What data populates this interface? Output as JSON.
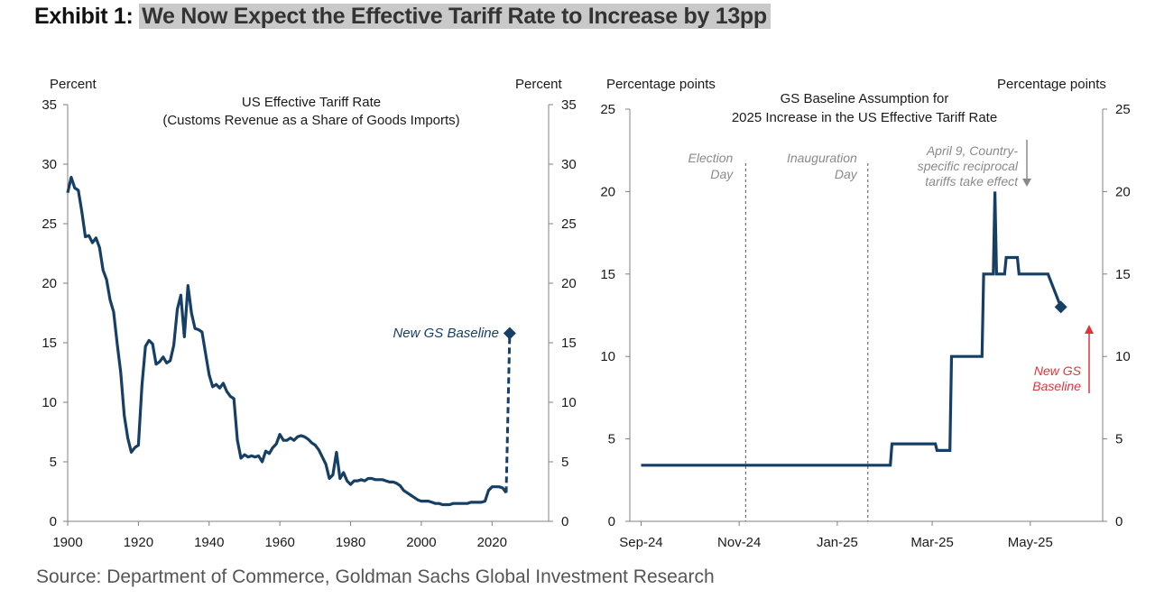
{
  "header": {
    "exhibit_label": "Exhibit 1:",
    "title": "We Now Expect the Effective Tariff Rate to Increase by 13pp"
  },
  "footer": {
    "source": "Source: Department of Commerce, Goldman Sachs Global Investment Research"
  },
  "colors": {
    "series": "#163f66",
    "annotation_gray": "#8a8a8a",
    "annotation_red": "#e0343b",
    "axis": "#808080"
  },
  "chart_data": [
    {
      "type": "line",
      "title_lines": [
        "US Effective Tariff Rate",
        "(Customs Revenue  as a Share of Goods Imports)"
      ],
      "ylabel_left": "Percent",
      "ylabel_right": "Percent",
      "xlim": [
        1900,
        2036
      ],
      "ylim": [
        0,
        35
      ],
      "x_ticks": [
        "1900",
        "1920",
        "1940",
        "1960",
        "1980",
        "2000",
        "2020"
      ],
      "x_tick_values": [
        1900,
        1920,
        1940,
        1960,
        1980,
        2000,
        2020
      ],
      "y_ticks": [
        "0",
        "5",
        "10",
        "15",
        "20",
        "25",
        "30",
        "35"
      ],
      "y_tick_values": [
        0,
        5,
        10,
        15,
        20,
        25,
        30,
        35
      ],
      "series": [
        {
          "x": [
            1900,
            1901,
            1902,
            1903,
            1904,
            1905,
            1906,
            1907,
            1908,
            1909,
            1910,
            1911,
            1912,
            1913,
            1914,
            1915,
            1916,
            1917,
            1918,
            1919,
            1920,
            1921,
            1922,
            1923,
            1924,
            1925,
            1926,
            1927,
            1928,
            1929,
            1930,
            1931,
            1932,
            1933,
            1934,
            1935,
            1936,
            1937,
            1938,
            1939,
            1940,
            1941,
            1942,
            1943,
            1944,
            1945,
            1946,
            1947,
            1948,
            1949,
            1950,
            1951,
            1952,
            1953,
            1954,
            1955,
            1956,
            1957,
            1958,
            1959,
            1960,
            1961,
            1962,
            1963,
            1964,
            1965,
            1966,
            1967,
            1968,
            1969,
            1970,
            1971,
            1972,
            1973,
            1974,
            1975,
            1976,
            1977,
            1978,
            1979,
            1980,
            1981,
            1982,
            1983,
            1984,
            1985,
            1986,
            1987,
            1988,
            1989,
            1990,
            1991,
            1992,
            1993,
            1994,
            1995,
            1996,
            1997,
            1998,
            1999,
            2000,
            2001,
            2002,
            2003,
            2004,
            2005,
            2006,
            2007,
            2008,
            2009,
            2010,
            2011,
            2012,
            2013,
            2014,
            2015,
            2016,
            2017,
            2018,
            2019,
            2020,
            2021,
            2022,
            2023,
            2024
          ],
          "values": [
            27.6,
            28.9,
            28.0,
            27.8,
            26.0,
            23.9,
            24.0,
            23.4,
            23.8,
            23.0,
            21.1,
            20.3,
            18.6,
            17.6,
            14.9,
            12.5,
            8.9,
            7.0,
            5.8,
            6.2,
            6.4,
            11.4,
            14.7,
            15.2,
            14.9,
            13.2,
            13.4,
            13.8,
            13.3,
            13.5,
            14.8,
            17.8,
            19.0,
            15.5,
            19.8,
            17.5,
            16.2,
            16.1,
            15.9,
            14.1,
            12.3,
            11.3,
            11.5,
            11.2,
            11.6,
            10.9,
            10.5,
            10.3,
            6.8,
            5.3,
            5.6,
            5.4,
            5.5,
            5.4,
            5.5,
            5.0,
            5.9,
            5.7,
            6.2,
            6.5,
            7.3,
            6.8,
            6.8,
            7.0,
            6.8,
            7.1,
            7.2,
            7.1,
            6.9,
            6.6,
            6.4,
            6.0,
            5.4,
            4.8,
            3.6,
            3.9,
            5.8,
            3.6,
            4.1,
            3.4,
            3.1,
            3.4,
            3.4,
            3.5,
            3.4,
            3.6,
            3.6,
            3.5,
            3.5,
            3.5,
            3.4,
            3.3,
            3.3,
            3.2,
            3.0,
            2.6,
            2.4,
            2.2,
            2.0,
            1.8,
            1.7,
            1.7,
            1.7,
            1.6,
            1.5,
            1.5,
            1.4,
            1.4,
            1.4,
            1.5,
            1.5,
            1.5,
            1.5,
            1.5,
            1.6,
            1.6,
            1.6,
            1.6,
            1.7,
            2.6,
            2.9,
            2.9,
            2.9,
            2.8,
            2.4
          ]
        }
      ],
      "baseline_projection": {
        "x": [
          2024,
          2025
        ],
        "values": [
          2.4,
          15.8
        ],
        "marker": [
          2025,
          15.8
        ]
      },
      "annotations": {
        "baseline_label": "New GS Baseline"
      }
    },
    {
      "type": "line",
      "title_lines": [
        "GS Baseline  Assumption for",
        "2025 Increase  in the US Effective  Tariff Rate"
      ],
      "ylabel_left": "Percentage  points",
      "ylabel_right": "Percentage  points",
      "xlim": [
        "2024-08-25",
        "2025-06-15"
      ],
      "ylim": [
        0,
        25
      ],
      "x_ticks": [
        "Sep-24",
        "Nov-24",
        "Jan-25",
        "Mar-25",
        "May-25"
      ],
      "x_tick_dates": [
        "2024-09-01",
        "2024-11-01",
        "2025-01-01",
        "2025-03-01",
        "2025-05-01"
      ],
      "y_ticks": [
        "0",
        "5",
        "10",
        "15",
        "20",
        "25"
      ],
      "y_tick_values": [
        0,
        5,
        10,
        15,
        20,
        25
      ],
      "series": [
        {
          "x": [
            "2024-09-01",
            "2025-02-03",
            "2025-02-04",
            "2025-03-03",
            "2025-03-04",
            "2025-03-12",
            "2025-03-13",
            "2025-04-01",
            "2025-04-02",
            "2025-04-08",
            "2025-04-09",
            "2025-04-10",
            "2025-04-11",
            "2025-04-15",
            "2025-04-16",
            "2025-04-23",
            "2025-04-24",
            "2025-05-11",
            "2025-05-12",
            "2025-05-20"
          ],
          "values": [
            3.4,
            3.4,
            4.7,
            4.7,
            4.3,
            4.3,
            10.0,
            10.0,
            15.0,
            15.0,
            20.0,
            15.0,
            15.0,
            15.0,
            16.0,
            16.0,
            15.0,
            15.0,
            15.0,
            13.0
          ]
        }
      ],
      "event_lines": [
        {
          "date": "2024-11-05",
          "label_lines": [
            "Election",
            "Day"
          ]
        },
        {
          "date": "2025-01-20",
          "label_lines": [
            "Inauguration",
            "Day"
          ]
        }
      ],
      "annotations": {
        "april9_lines": [
          "April 9, Country-",
          "specific reciprocal",
          "tariffs take effect"
        ],
        "baseline_lines": [
          "New GS",
          "Baseline"
        ],
        "baseline_marker": [
          "2025-05-20",
          13.0
        ]
      }
    }
  ]
}
